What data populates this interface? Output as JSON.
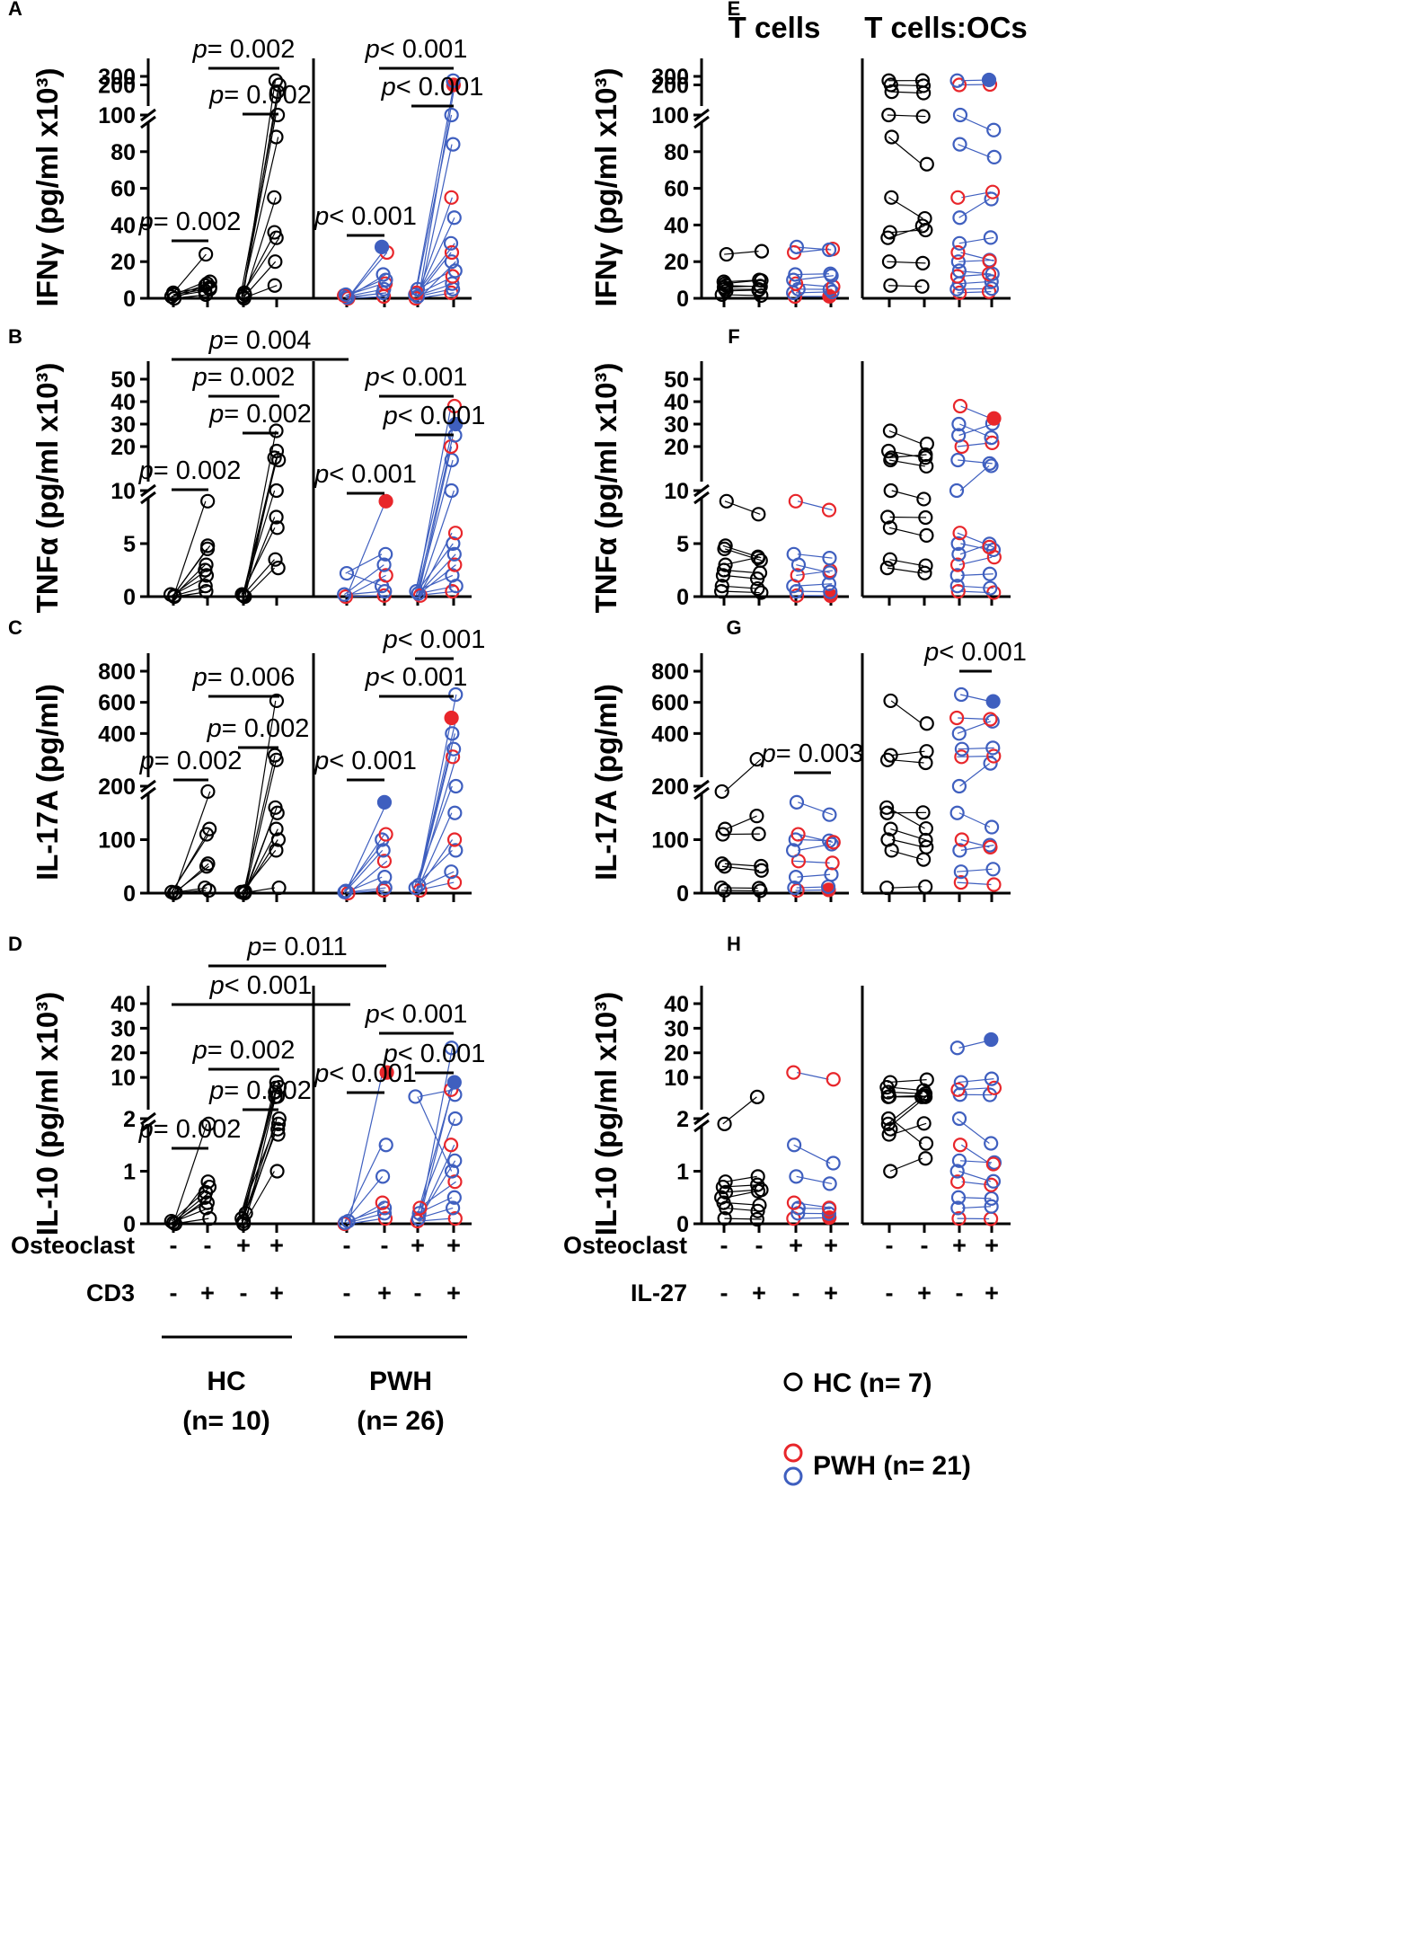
{
  "figure": {
    "column_titles": [
      "T cells",
      "T cells:OCs"
    ],
    "row_labels": {
      "osteoclast": "Osteoclast",
      "cd3": "CD3",
      "il27": "IL-27"
    },
    "condition_signs": {
      "osteoclast": [
        "-",
        "-",
        "+",
        "+"
      ],
      "stimulus": [
        "-",
        "+",
        "-",
        "+"
      ]
    },
    "groups": [
      {
        "name": "HC",
        "n": "(n= 10)"
      },
      {
        "name": "PWH",
        "n": "(n= 26)"
      }
    ],
    "legend": [
      {
        "label": "HC (n= 7)"
      },
      {
        "label": "PWH (n= 21)"
      }
    ],
    "colors": {
      "hc": "#000000",
      "pwh_red": "#e8262b",
      "pwh_blue": "#3f5fbf"
    }
  },
  "chart_data": [
    {
      "panel": "A",
      "type": "scatter",
      "ylabel": "IFNγ (pg/ml x10³)",
      "y_ticks_lower": [
        "0",
        "20",
        "40",
        "60",
        "80",
        "100"
      ],
      "y_ticks_upper": [
        "200",
        "300"
      ],
      "x_conditions": [
        "Osteoclast-/CD3-",
        "Osteoclast-/CD3+",
        "Osteoclast+/CD3-",
        "Osteoclast+/CD3+"
      ],
      "groups": [
        {
          "name": "HC",
          "values": [
            [
              0,
              1,
              2,
              3
            ],
            [
              2,
              4,
              5,
              6,
              7,
              8,
              9,
              24
            ],
            [
              0,
              1,
              2,
              3
            ],
            [
              7,
              20,
              33,
              36,
              55,
              88,
              100,
              120,
              200,
              250
            ]
          ]
        },
        {
          "name": "PWH",
          "values": [
            [
              0,
              0.5,
              1,
              1.5,
              2
            ],
            [
              1,
              3,
              5,
              8,
              10,
              13,
              25,
              28
            ],
            [
              0,
              1,
              2,
              3,
              5
            ],
            [
              3,
              5,
              8,
              12,
              15,
              20,
              25,
              30,
              44,
              55,
              84,
              100,
              200,
              250
            ]
          ]
        }
      ],
      "annotations": [
        "p= 0.002",
        "p= 0.002",
        "p= 0.002",
        "p< 0.001",
        "p< 0.001",
        "p< 0.001"
      ]
    },
    {
      "panel": "B",
      "type": "scatter",
      "ylabel": "TNFα (pg/ml x10³)",
      "y_ticks_lower": [
        "0",
        "5",
        "10"
      ],
      "y_ticks_upper": [
        "20",
        "30",
        "40",
        "50"
      ],
      "groups": [
        {
          "name": "HC",
          "values": [
            [
              0,
              0.1,
              0.2
            ],
            [
              0.5,
              1,
              2,
              2.5,
              3,
              4.5,
              4.8,
              9
            ],
            [
              0,
              0.1,
              0.2
            ],
            [
              2.7,
              3.5,
              6.5,
              7.5,
              10,
              14,
              15,
              18,
              27
            ]
          ]
        },
        {
          "name": "PWH",
          "values": [
            [
              0,
              0.2,
              2.2
            ],
            [
              0.1,
              0.5,
              1,
              2,
              3,
              4,
              9
            ],
            [
              0.1,
              0.3,
              0.5
            ],
            [
              0.5,
              1,
              2,
              3,
              4,
              5,
              6,
              10,
              14,
              20,
              25,
              30,
              38
            ]
          ]
        }
      ],
      "annotations": [
        "p= 0.004",
        "p= 0.002",
        "p= 0.002",
        "p= 0.002",
        "p< 0.001",
        "p< 0.001",
        "p< 0.001"
      ]
    },
    {
      "panel": "C",
      "type": "scatter",
      "ylabel": "IL-17A (pg/ml)",
      "y_ticks_lower": [
        "0",
        "100",
        "200"
      ],
      "y_ticks_upper": [
        "400",
        "600",
        "800"
      ],
      "groups": [
        {
          "name": "HC",
          "values": [
            [
              0,
              1,
              2
            ],
            [
              5,
              10,
              50,
              55,
              110,
              120,
              190
            ],
            [
              0,
              1,
              2,
              3
            ],
            [
              10,
              80,
              100,
              120,
              150,
              160,
              230,
              260,
              610
            ]
          ]
        },
        {
          "name": "PWH",
          "values": [
            [
              0,
              2,
              4
            ],
            [
              5,
              10,
              30,
              60,
              80,
              100,
              110,
              170
            ],
            [
              5,
              10,
              15
            ],
            [
              20,
              40,
              80,
              100,
              150,
              200,
              250,
              300,
              400,
              500,
              650
            ]
          ]
        }
      ],
      "annotations": [
        "p= 0.006",
        "p= 0.002",
        "p= 0.002",
        "p< 0.001",
        "p< 0.001",
        "p< 0.001"
      ]
    },
    {
      "panel": "D",
      "type": "scatter",
      "ylabel": "IL-10 (pg/ml x10³)",
      "y_ticks_lower": [
        "0",
        "1",
        "2"
      ],
      "y_ticks_upper": [
        "10",
        "20",
        "30",
        "40"
      ],
      "groups": [
        {
          "name": "HC",
          "values": [
            [
              0,
              0.02,
              0.05
            ],
            [
              0.1,
              0.3,
              0.4,
              0.5,
              0.6,
              0.7,
              0.8,
              1.9
            ],
            [
              0,
              0.05,
              0.1,
              0.2
            ],
            [
              1,
              1.7,
              1.8,
              1.9,
              2.0,
              2.1,
              2.2,
              4,
              6,
              8
            ]
          ]
        },
        {
          "name": "PWH",
          "values": [
            [
              0,
              0.02,
              0.05
            ],
            [
              0.1,
              0.2,
              0.3,
              0.4,
              0.9,
              1.5,
              12
            ],
            [
              0.05,
              0.1,
              0.2,
              0.3,
              2.2
            ],
            [
              0.1,
              0.3,
              0.5,
              0.8,
              1,
              1.2,
              1.5,
              2,
              3,
              5,
              8,
              22
            ]
          ]
        }
      ],
      "annotations": [
        "p= 0.011",
        "p< 0.001",
        "p= 0.002",
        "p= 0.002",
        "p= 0.002",
        "p< 0.001",
        "p< 0.001",
        "p< 0.001"
      ]
    },
    {
      "panel": "E",
      "type": "scatter",
      "ylabel": "IFNγ (pg/ml x10³)",
      "y_ticks_lower": [
        "0",
        "20",
        "40",
        "60",
        "80",
        "100"
      ],
      "y_ticks_upper": [
        "200",
        "300"
      ],
      "subpanels": [
        "T cells",
        "T cells:OCs"
      ],
      "annotations": []
    },
    {
      "panel": "F",
      "type": "scatter",
      "ylabel": "TNFα (pg/ml x10³)",
      "y_ticks_lower": [
        "0",
        "5",
        "10"
      ],
      "y_ticks_upper": [
        "20",
        "30",
        "40",
        "50"
      ],
      "subpanels": [
        "T cells",
        "T cells:OCs"
      ],
      "annotations": []
    },
    {
      "panel": "G",
      "type": "scatter",
      "ylabel": "IL-17A (pg/ml)",
      "y_ticks_lower": [
        "0",
        "100",
        "200"
      ],
      "y_ticks_upper": [
        "400",
        "600",
        "800"
      ],
      "subpanels": [
        "T cells",
        "T cells:OCs"
      ],
      "annotations": [
        "p= 0.003",
        "p< 0.001"
      ]
    },
    {
      "panel": "H",
      "type": "scatter",
      "ylabel": "IL-10 (pg/ml x10³)",
      "y_ticks_lower": [
        "0",
        "1",
        "2"
      ],
      "y_ticks_upper": [
        "10",
        "20",
        "30",
        "40"
      ],
      "subpanels": [
        "T cells",
        "T cells:OCs"
      ],
      "annotations": []
    }
  ]
}
